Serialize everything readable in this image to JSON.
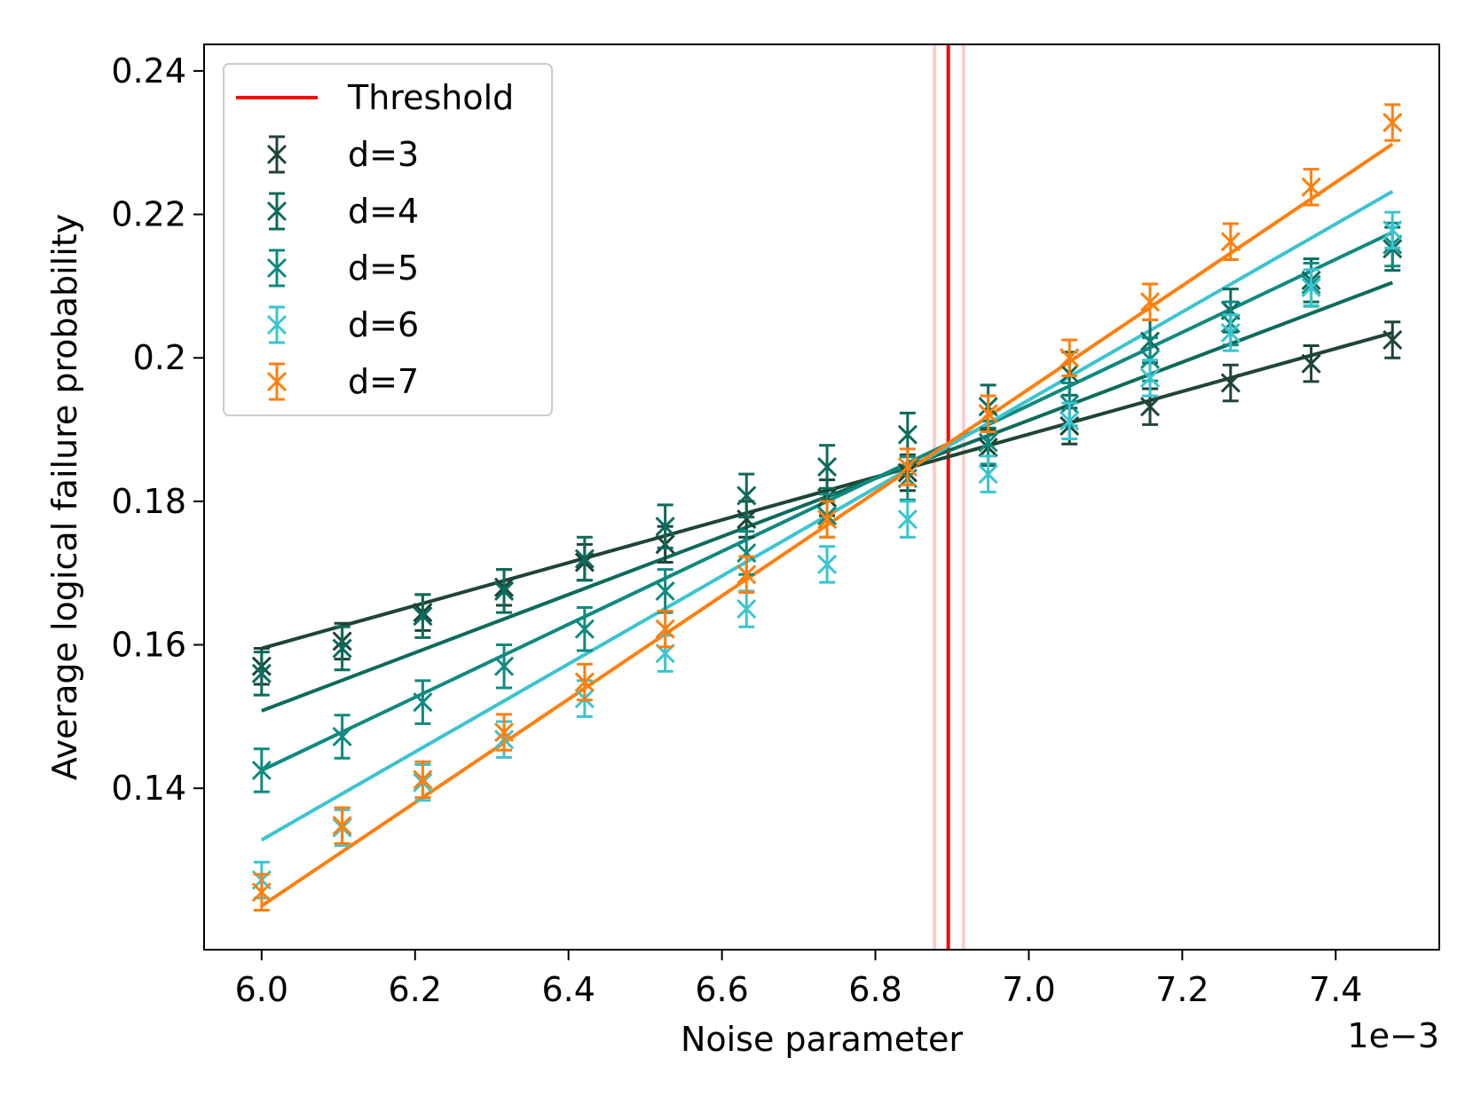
{
  "chart_data": {
    "type": "line",
    "title": "",
    "xlabel": "Noise parameter",
    "ylabel": "Average logical failure probability",
    "x_multiplier_label": "1e−3",
    "xlim": [
      5.925,
      7.535
    ],
    "ylim": [
      0.1175,
      0.2437
    ],
    "xticks": [
      6.0,
      6.2,
      6.4,
      6.6,
      6.8,
      7.0,
      7.2,
      7.4
    ],
    "xtick_labels": [
      "6.0",
      "6.2",
      "6.4",
      "6.6",
      "6.8",
      "7.0",
      "7.2",
      "7.4"
    ],
    "yticks": [
      0.14,
      0.16,
      0.18,
      0.2,
      0.22,
      0.24
    ],
    "ytick_labels": [
      "0.14",
      "0.16",
      "0.18",
      "0.2",
      "0.22",
      "0.24"
    ],
    "grid": false,
    "legend_position": "top-left",
    "threshold": {
      "name": "Threshold",
      "x": 6.895,
      "lower": 6.877,
      "upper": 6.915,
      "color": "#ff0000",
      "band_color": "#ffcccc"
    },
    "x": [
      6.0,
      6.105,
      6.21,
      6.316,
      6.421,
      6.526,
      6.632,
      6.737,
      6.842,
      6.947,
      7.053,
      7.158,
      7.263,
      7.368,
      7.474
    ],
    "series": [
      {
        "name": "d=3",
        "color": "#1e4535",
        "values": [
          0.157,
          0.1605,
          0.1645,
          0.168,
          0.1715,
          0.174,
          0.1775,
          0.1805,
          0.184,
          0.1875,
          0.1905,
          0.1932,
          0.1965,
          0.1992,
          0.2025
        ],
        "errors": [
          0.0025,
          0.0025,
          0.0025,
          0.0025,
          0.0025,
          0.0025,
          0.0025,
          0.0025,
          0.0025,
          0.0025,
          0.0025,
          0.0025,
          0.0025,
          0.0025,
          0.0025
        ],
        "fit_start": [
          6.0,
          0.1595
        ],
        "fit_end": [
          7.474,
          0.2035
        ]
      },
      {
        "name": "d=4",
        "color": "#0b6b5c",
        "values": [
          0.156,
          0.1595,
          0.164,
          0.1675,
          0.172,
          0.1765,
          0.1808,
          0.1848,
          0.1893,
          0.1932,
          0.1978,
          0.2023,
          0.2066,
          0.2108,
          0.2152
        ],
        "errors": [
          0.003,
          0.003,
          0.003,
          0.003,
          0.003,
          0.003,
          0.003,
          0.003,
          0.003,
          0.003,
          0.003,
          0.003,
          0.003,
          0.003,
          0.003
        ],
        "fit_start": [
          6.0,
          0.1508
        ],
        "fit_end": [
          7.474,
          0.2105
        ]
      },
      {
        "name": "d=5",
        "color": "#0e8a80",
        "values": [
          0.1425,
          0.1472,
          0.152,
          0.157,
          0.1622,
          0.1675,
          0.1728,
          0.178,
          0.1832,
          0.1882,
          0.1935,
          0.1998,
          0.2048,
          0.2102,
          0.2158
        ],
        "errors": [
          0.003,
          0.003,
          0.003,
          0.003,
          0.003,
          0.003,
          0.003,
          0.003,
          0.003,
          0.003,
          0.003,
          0.003,
          0.003,
          0.003,
          0.003
        ],
        "fit_start": [
          6.0,
          0.1425
        ],
        "fit_end": [
          7.474,
          0.2175
        ]
      },
      {
        "name": "d=6",
        "color": "#3ac4d0",
        "values": [
          0.1272,
          0.1345,
          0.1408,
          0.1468,
          0.1525,
          0.1588,
          0.165,
          0.1712,
          0.1775,
          0.1838,
          0.1912,
          0.1972,
          0.2035,
          0.2098,
          0.2178
        ],
        "errors": [
          0.0025,
          0.0025,
          0.0025,
          0.0025,
          0.0025,
          0.0025,
          0.0025,
          0.0025,
          0.0025,
          0.0025,
          0.0025,
          0.0025,
          0.0025,
          0.0025,
          0.0025
        ],
        "fit_start": [
          6.0,
          0.1328
        ],
        "fit_end": [
          7.474,
          0.2232
        ]
      },
      {
        "name": "d=7",
        "color": "#ff7f0e",
        "values": [
          0.1255,
          0.1348,
          0.1412,
          0.1478,
          0.1548,
          0.1622,
          0.1698,
          0.1775,
          0.1848,
          0.1922,
          0.2,
          0.2078,
          0.2162,
          0.2238,
          0.2328
        ],
        "errors": [
          0.0025,
          0.0025,
          0.0025,
          0.0025,
          0.0025,
          0.0025,
          0.0025,
          0.0025,
          0.0025,
          0.0025,
          0.0025,
          0.0025,
          0.0025,
          0.0025,
          0.0025
        ],
        "fit_start": [
          6.0,
          0.1236
        ],
        "fit_end": [
          7.474,
          0.2298
        ]
      }
    ]
  }
}
